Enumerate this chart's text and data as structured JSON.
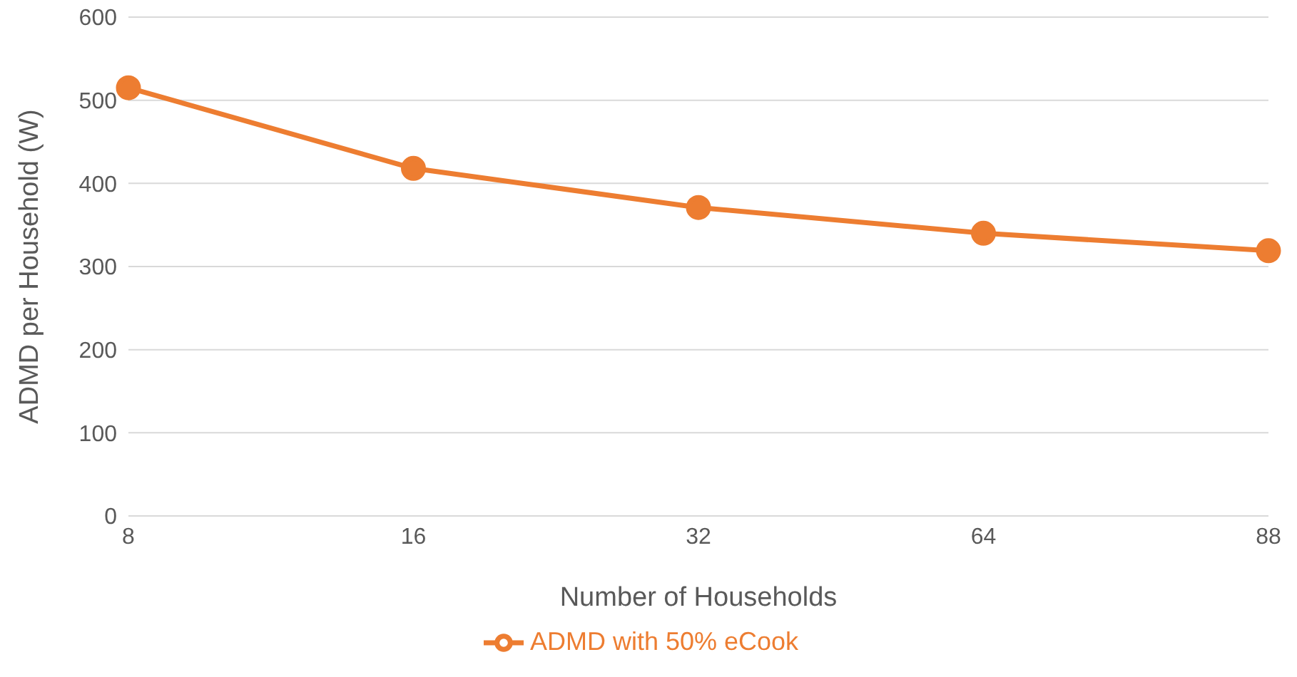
{
  "chart_data": {
    "type": "line",
    "xlabel": "Number of Households",
    "ylabel": "ADMD per Household (W)",
    "categories": [
      "8",
      "16",
      "32",
      "64",
      "88"
    ],
    "series": [
      {
        "name": "ADMD with 50% eCook",
        "color": "#ed7d31",
        "values": [
          515,
          418,
          371,
          340,
          319
        ]
      }
    ],
    "ylim": [
      0,
      600
    ],
    "yticks": [
      0,
      100,
      200,
      300,
      400,
      500,
      600
    ],
    "grid": "y",
    "legend": "bottom",
    "marker": "circle"
  }
}
